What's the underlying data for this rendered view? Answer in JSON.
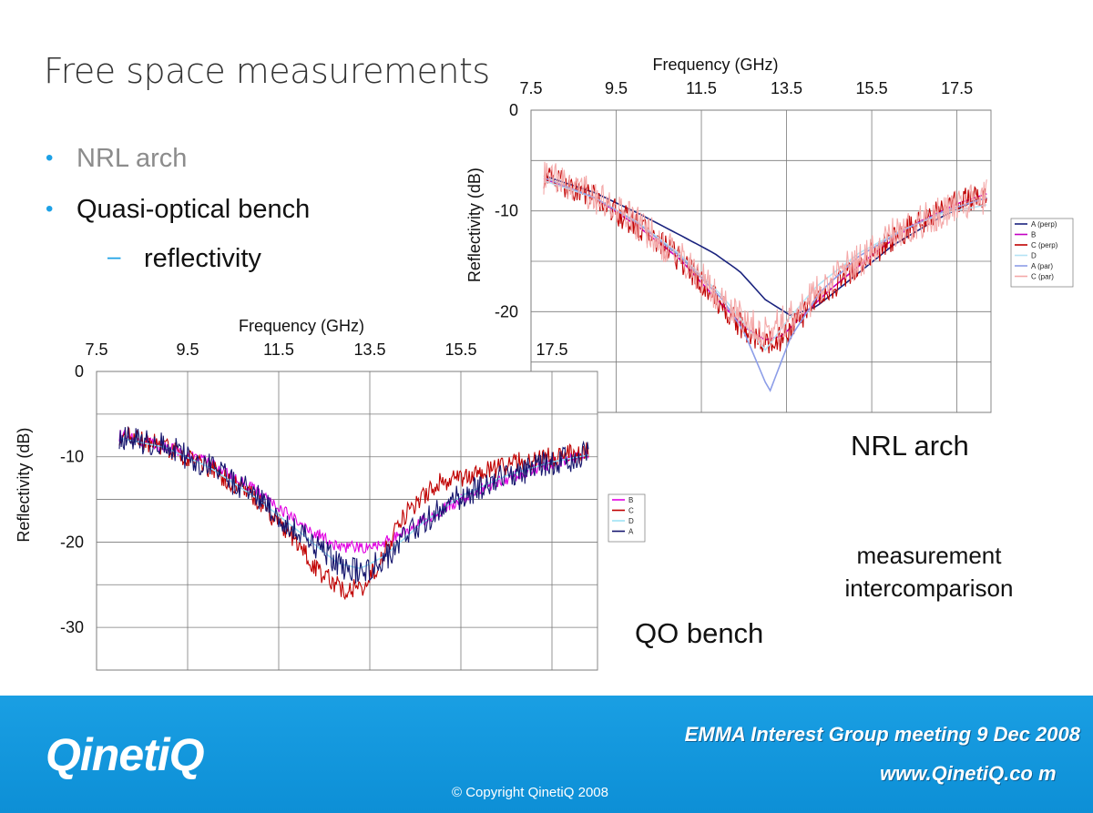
{
  "slide": {
    "title": "Free space measurements",
    "bullets": [
      {
        "text": "NRL arch",
        "color": "#8c8c8c",
        "level": 1
      },
      {
        "text": "Quasi-optical bench",
        "color": "#111111",
        "level": 1
      },
      {
        "text": "reflectivity",
        "color": "#111111",
        "level": 2
      }
    ],
    "level2_marker": "–",
    "bullet_marker": "•",
    "label_nrl": "NRL arch",
    "label_qo": "QO bench",
    "note_line1": "measurement",
    "note_line2": "intercomparison"
  },
  "footer": {
    "logo": "QinetiQ",
    "event": "EMMA Interest Group meeting 9 Dec 2008",
    "website": "www.QinetiQ.co m",
    "copyright": "© Copyright QinetiQ 2008",
    "background": "#1a9fe3"
  },
  "chart_data": [
    {
      "id": "nrl",
      "type": "line",
      "xlabel": "Frequency (GHz)",
      "ylabel": "Reflectivity (dB)",
      "x_ticks": [
        "7.5",
        "9.5",
        "11.5",
        "13.5",
        "15.5",
        "17.5"
      ],
      "y_ticks": [
        "0",
        "-10",
        "-20"
      ],
      "xlim": [
        7.5,
        18.3
      ],
      "ylim": [
        -30,
        0
      ],
      "grid": true,
      "legend": "right",
      "series": [
        {
          "name": "A (perp)",
          "color": "#1a237e",
          "points": [
            [
              7.8,
              -6.5
            ],
            [
              9.0,
              -8.2
            ],
            [
              10.0,
              -10.2
            ],
            [
              11.0,
              -12.4
            ],
            [
              11.8,
              -14.2
            ],
            [
              12.4,
              -16.0
            ],
            [
              13.0,
              -18.8
            ],
            [
              13.6,
              -20.4
            ],
            [
              14.2,
              -19.5
            ],
            [
              15.0,
              -16.8
            ],
            [
              16.0,
              -13.4
            ],
            [
              17.0,
              -10.9
            ],
            [
              18.0,
              -8.8
            ],
            [
              18.2,
              -8.9
            ]
          ]
        },
        {
          "name": "B",
          "color": "#c400c4",
          "points": [
            [
              7.8,
              -6.8
            ],
            [
              9.0,
              -8.7
            ],
            [
              10.0,
              -11.5
            ],
            [
              11.0,
              -14.8
            ],
            [
              11.8,
              -18.5
            ],
            [
              12.5,
              -21.5
            ],
            [
              13.0,
              -22.8
            ],
            [
              13.4,
              -22.4
            ],
            [
              13.8,
              -20.7
            ],
            [
              14.5,
              -17.9
            ],
            [
              15.5,
              -14.4
            ],
            [
              16.5,
              -11.3
            ],
            [
              17.5,
              -9.3
            ],
            [
              18.2,
              -8.3
            ]
          ]
        },
        {
          "name": "C (perp)",
          "color": "#c00000",
          "noise": 1.3,
          "points": [
            [
              7.8,
              -6.5
            ],
            [
              9.0,
              -8.7
            ],
            [
              10.0,
              -11.5
            ],
            [
              11.0,
              -14.8
            ],
            [
              11.8,
              -18.6
            ],
            [
              12.5,
              -21.8
            ],
            [
              13.0,
              -23.2
            ],
            [
              13.4,
              -22.6
            ],
            [
              13.8,
              -20.8
            ],
            [
              14.5,
              -17.9
            ],
            [
              15.5,
              -14.4
            ],
            [
              16.5,
              -11.4
            ],
            [
              17.5,
              -9.2
            ],
            [
              18.2,
              -8.4
            ]
          ]
        },
        {
          "name": "D",
          "color": "#b4e3f5",
          "points": [
            [
              7.8,
              -7.0
            ],
            [
              9.0,
              -8.7
            ],
            [
              10.0,
              -11.1
            ],
            [
              11.0,
              -14.3
            ],
            [
              12.0,
              -18.5
            ],
            [
              12.6,
              -21.7
            ],
            [
              13.0,
              -23.8
            ],
            [
              13.5,
              -21.0
            ],
            [
              14.2,
              -17.5
            ],
            [
              15.2,
              -14.2
            ],
            [
              16.2,
              -11.9
            ],
            [
              17.2,
              -10.2
            ],
            [
              18.2,
              -9.4
            ]
          ]
        },
        {
          "name": "A (par)",
          "color": "#8c9de8",
          "points": [
            [
              7.8,
              -6.7
            ],
            [
              9.0,
              -8.7
            ],
            [
              10.0,
              -11.2
            ],
            [
              11.0,
              -14.5
            ],
            [
              12.0,
              -18.8
            ],
            [
              12.5,
              -22.0
            ],
            [
              13.1,
              -28.0
            ],
            [
              13.6,
              -22.5
            ],
            [
              14.3,
              -18.0
            ],
            [
              15.2,
              -14.5
            ],
            [
              16.2,
              -12.0
            ],
            [
              17.2,
              -10.0
            ],
            [
              18.2,
              -8.7
            ]
          ]
        },
        {
          "name": "C (par)",
          "color": "#f4a8a8",
          "noise": 1.8,
          "points": [
            [
              7.8,
              -6.6
            ],
            [
              9.0,
              -8.6
            ],
            [
              10.0,
              -11.3
            ],
            [
              11.0,
              -14.6
            ],
            [
              11.8,
              -18.0
            ],
            [
              12.5,
              -20.8
            ],
            [
              13.0,
              -21.9
            ],
            [
              13.5,
              -21.0
            ],
            [
              14.0,
              -19.0
            ],
            [
              15.0,
              -15.5
            ],
            [
              16.0,
              -12.4
            ],
            [
              17.0,
              -10.3
            ],
            [
              18.2,
              -8.6
            ]
          ]
        }
      ]
    },
    {
      "id": "qo",
      "type": "line",
      "xlabel": "Frequency (GHz)",
      "ylabel": "Reflectivity (dB)",
      "x_ticks": [
        "7.5",
        "9.5",
        "11.5",
        "13.5",
        "15.5",
        "17.5"
      ],
      "y_ticks": [
        "0",
        "-10",
        "-20",
        "-30"
      ],
      "xlim": [
        7.5,
        18.5
      ],
      "ylim": [
        -35,
        0
      ],
      "grid": true,
      "legend": "right",
      "series": [
        {
          "name": "B",
          "color": "#e100e1",
          "noise": 0.7,
          "points": [
            [
              8.0,
              -7.5
            ],
            [
              9.0,
              -8.8
            ],
            [
              10.0,
              -10.8
            ],
            [
              11.0,
              -14.0
            ],
            [
              12.0,
              -17.9
            ],
            [
              12.8,
              -20.5
            ],
            [
              13.5,
              -20.7
            ],
            [
              14.2,
              -19.0
            ],
            [
              15.0,
              -16.5
            ],
            [
              16.0,
              -13.6
            ],
            [
              17.0,
              -11.6
            ],
            [
              18.3,
              -9.6
            ]
          ]
        },
        {
          "name": "C",
          "color": "#c00000",
          "noise": 1.2,
          "points": [
            [
              8.0,
              -7.5
            ],
            [
              9.0,
              -8.8
            ],
            [
              10.0,
              -11.4
            ],
            [
              11.0,
              -15.0
            ],
            [
              11.8,
              -19.5
            ],
            [
              12.4,
              -23.5
            ],
            [
              12.9,
              -25.6
            ],
            [
              13.3,
              -25.4
            ],
            [
              13.7,
              -22.5
            ],
            [
              14.3,
              -16.5
            ],
            [
              15.0,
              -13.0
            ],
            [
              16.0,
              -11.8
            ],
            [
              17.0,
              -10.3
            ],
            [
              18.3,
              -9.5
            ]
          ]
        },
        {
          "name": "D",
          "color": "#9fe2f5",
          "points": [
            [
              8.0,
              -7.8
            ],
            [
              9.0,
              -8.9
            ],
            [
              10.0,
              -11.3
            ],
            [
              11.0,
              -14.8
            ],
            [
              12.0,
              -19.0
            ],
            [
              12.8,
              -22.5
            ],
            [
              13.3,
              -23.1
            ],
            [
              13.8,
              -21.7
            ],
            [
              14.6,
              -18.0
            ],
            [
              15.5,
              -14.6
            ],
            [
              16.5,
              -12.2
            ],
            [
              17.5,
              -10.6
            ],
            [
              18.3,
              -9.8
            ]
          ]
        },
        {
          "name": "A",
          "color": "#16166e",
          "noise": 1.6,
          "points": [
            [
              8.0,
              -7.5
            ],
            [
              9.0,
              -8.7
            ],
            [
              10.0,
              -11.2
            ],
            [
              11.0,
              -14.6
            ],
            [
              12.0,
              -19.0
            ],
            [
              12.8,
              -22.5
            ],
            [
              13.3,
              -23.6
            ],
            [
              13.8,
              -22.0
            ],
            [
              14.6,
              -18.0
            ],
            [
              15.5,
              -14.6
            ],
            [
              16.5,
              -12.3
            ],
            [
              17.5,
              -10.7
            ],
            [
              18.3,
              -9.7
            ]
          ]
        }
      ]
    }
  ]
}
